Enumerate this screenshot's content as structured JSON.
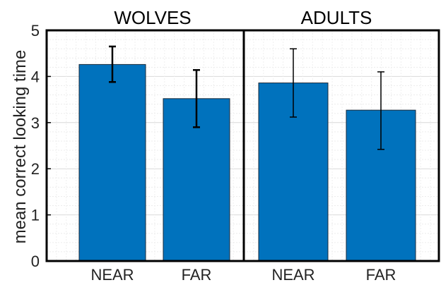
{
  "chart_data": [
    {
      "type": "bar",
      "title": "WOLVES",
      "categories": [
        "NEAR",
        "FAR"
      ],
      "values": [
        4.26,
        3.52
      ],
      "error_low": [
        3.88,
        2.9
      ],
      "error_high": [
        4.65,
        4.14
      ],
      "ylabel": "mean correct looking time",
      "ylim": [
        0,
        5
      ],
      "yticks": [
        "0",
        "1",
        "2",
        "3",
        "4",
        "5"
      ],
      "grid": true,
      "bar_color": "#0072BD"
    },
    {
      "type": "bar",
      "title": "ADULTS",
      "categories": [
        "NEAR",
        "FAR"
      ],
      "values": [
        3.86,
        3.27
      ],
      "error_low": [
        3.12,
        2.42
      ],
      "error_high": [
        4.6,
        4.1
      ],
      "ylim": [
        0,
        5
      ],
      "grid": true,
      "bar_color": "#0072BD"
    }
  ]
}
